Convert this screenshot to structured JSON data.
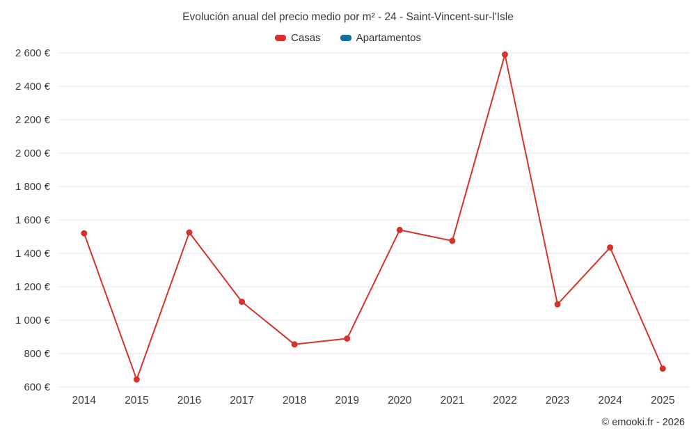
{
  "title": "Evolución anual del precio medio por m² - 24 - Saint-Vincent-sur-l'Isle",
  "copyright": "© emooki.fr - 2026",
  "chart_data": {
    "type": "line",
    "title": "Evolución anual del precio medio por m² - 24 - Saint-Vincent-sur-l'Isle",
    "categories": [
      "2014",
      "2015",
      "2016",
      "2017",
      "2018",
      "2019",
      "2020",
      "2021",
      "2022",
      "2023",
      "2024",
      "2025"
    ],
    "series": [
      {
        "name": "Casas",
        "color": "#d7312c",
        "values": [
          1520,
          645,
          1525,
          1110,
          855,
          890,
          1540,
          1475,
          2590,
          1095,
          1435,
          710
        ]
      },
      {
        "name": "Apartamentos",
        "color": "#0f6f9d",
        "values": []
      }
    ],
    "xlabel": "",
    "ylabel": "",
    "y_unit": "€",
    "ylim": [
      600,
      2600
    ],
    "ytick_step": 200,
    "grid": "horizontal",
    "gridline_color": "#e6e6e6",
    "legend_position": "top",
    "marker": "circle"
  }
}
